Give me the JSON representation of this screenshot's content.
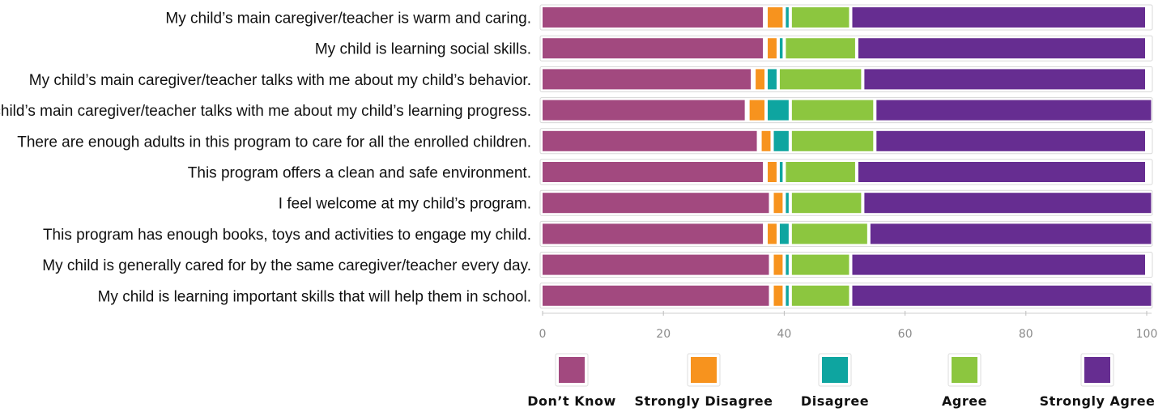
{
  "chart_data": {
    "type": "bar",
    "orientation": "horizontal",
    "stacked": true,
    "categories": [
      "My child’s main caregiver/teacher is warm and caring.",
      "My child is learning social skills.",
      "My child’s main caregiver/teacher talks with me about my child’s behavior.",
      "My child’s main caregiver/teacher talks with me about my child’s learning progress.",
      "There are enough adults in this program to care for all the enrolled children.",
      "This program offers a clean and safe environment.",
      "I feel welcome at my child’s program.",
      "This program has enough books, toys and activities to engage my child.",
      "My child is generally cared for by the same caregiver/teacher every day.",
      "My child is learning important skills that will help them in school."
    ],
    "series": [
      {
        "name": "Don’t Know",
        "color": "#a2497f",
        "values": [
          37,
          37,
          35,
          34,
          36,
          37,
          38,
          37,
          38,
          38
        ]
      },
      {
        "name": "Strongly Disagree",
        "color": "#f7931e",
        "values": [
          3,
          2,
          2,
          3,
          2,
          2,
          2,
          2,
          2,
          2
        ]
      },
      {
        "name": "Disagree",
        "color": "#0ea5a0",
        "values": [
          1,
          1,
          2,
          4,
          3,
          1,
          1,
          2,
          1,
          1
        ]
      },
      {
        "name": "Agree",
        "color": "#8cc63f",
        "values": [
          10,
          12,
          14,
          14,
          14,
          12,
          12,
          13,
          10,
          10
        ]
      },
      {
        "name": "Strongly Agree",
        "color": "#662d91",
        "values": [
          49,
          48,
          47,
          46,
          45,
          48,
          48,
          47,
          49,
          50
        ]
      }
    ],
    "xlim": [
      0,
      100
    ],
    "xticks": [
      "0",
      "20",
      "40",
      "60",
      "80",
      "100"
    ],
    "legend_position": "bottom",
    "grid": false
  }
}
